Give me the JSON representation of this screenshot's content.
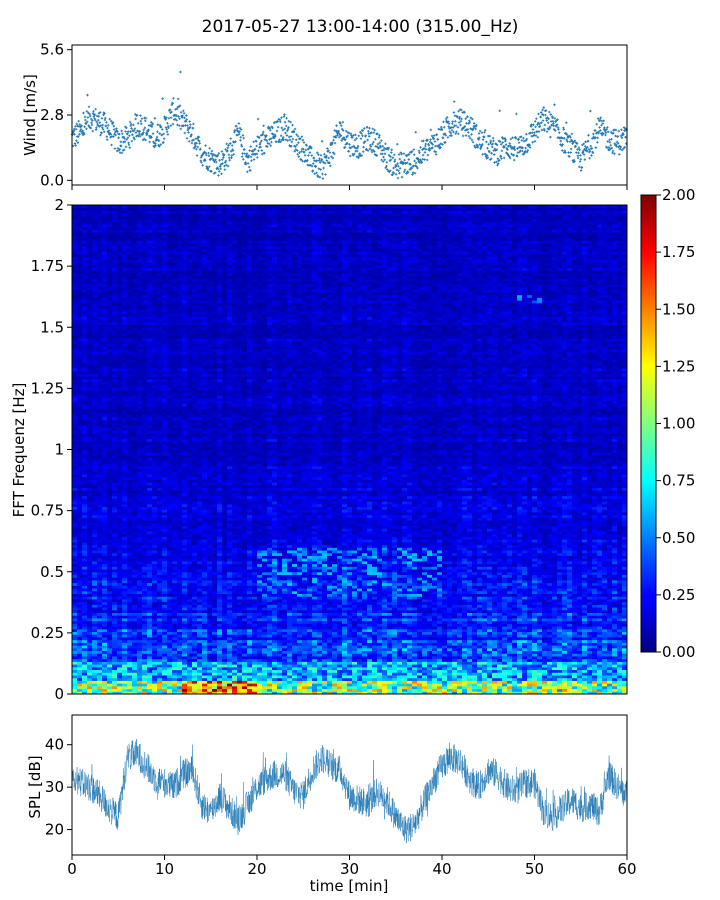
{
  "title": "2017-05-27 13:00-14:00 (315.00_Hz)",
  "colors": {
    "series": "#1f77b4",
    "axes": "#000000"
  },
  "chart_data": [
    {
      "type": "scatter",
      "ylabel": "Wind [m/s]",
      "xlim": [
        0,
        60
      ],
      "ylim": [
        -0.2,
        5.8
      ],
      "yticks": [
        "0.0",
        "2.8",
        "5.6"
      ],
      "marker": "+",
      "trend": [
        [
          0,
          1.8
        ],
        [
          1,
          2.1
        ],
        [
          2,
          2.7
        ],
        [
          3,
          2.5
        ],
        [
          4,
          2.2
        ],
        [
          5,
          1.6
        ],
        [
          6,
          1.8
        ],
        [
          7,
          2.4
        ],
        [
          8,
          2.2
        ],
        [
          9,
          1.8
        ],
        [
          10,
          2.2
        ],
        [
          11,
          3.0
        ],
        [
          12,
          2.5
        ],
        [
          13,
          2.0
        ],
        [
          14,
          1.2
        ],
        [
          15,
          0.9
        ],
        [
          16,
          0.7
        ],
        [
          17,
          1.2
        ],
        [
          18,
          2.0
        ],
        [
          19,
          0.8
        ],
        [
          20,
          1.4
        ],
        [
          21,
          1.7
        ],
        [
          22,
          2.0
        ],
        [
          23,
          2.3
        ],
        [
          24,
          1.8
        ],
        [
          25,
          1.3
        ],
        [
          26,
          0.8
        ],
        [
          27,
          0.5
        ],
        [
          28,
          1.2
        ],
        [
          29,
          2.2
        ],
        [
          30,
          1.6
        ],
        [
          31,
          1.5
        ],
        [
          32,
          1.8
        ],
        [
          33,
          1.6
        ],
        [
          34,
          1.0
        ],
        [
          35,
          0.6
        ],
        [
          36,
          0.7
        ],
        [
          37,
          0.8
        ],
        [
          38,
          1.2
        ],
        [
          39,
          1.5
        ],
        [
          40,
          1.9
        ],
        [
          41,
          2.4
        ],
        [
          42,
          2.5
        ],
        [
          43,
          2.3
        ],
        [
          44,
          1.7
        ],
        [
          45,
          1.4
        ],
        [
          46,
          1.2
        ],
        [
          47,
          1.5
        ],
        [
          48,
          1.3
        ],
        [
          49,
          1.6
        ],
        [
          50,
          2.1
        ],
        [
          51,
          2.6
        ],
        [
          52,
          2.3
        ],
        [
          53,
          1.8
        ],
        [
          54,
          1.3
        ],
        [
          55,
          0.9
        ],
        [
          56,
          1.5
        ],
        [
          57,
          2.2
        ],
        [
          58,
          1.8
        ],
        [
          59,
          1.6
        ],
        [
          60,
          1.9
        ]
      ],
      "series": [
        {
          "name": "",
          "color": "#1f77b4"
        }
      ]
    },
    {
      "type": "heatmap",
      "ylabel": "FFT Frequenz [Hz]",
      "xlim": [
        0,
        60
      ],
      "ylim": [
        0,
        2
      ],
      "yticks": [
        "0",
        "0.25",
        "0.5",
        "0.75",
        "1",
        "1.25",
        "1.5",
        "1.75",
        "2"
      ],
      "colormap": "jet",
      "colorbar": {
        "range": [
          0,
          2
        ],
        "ticks": [
          "0.00",
          "0.25",
          "0.50",
          "0.75",
          "1.00",
          "1.25",
          "1.50",
          "1.75",
          "2.00"
        ]
      },
      "features": [
        {
          "freq": [
            0,
            0.06
          ],
          "time": [
            0,
            60
          ],
          "level": 1.4
        },
        {
          "freq": [
            0.4,
            0.6
          ],
          "time": [
            20,
            40
          ],
          "level": 0.6
        },
        {
          "freq": [
            1.6,
            1.63
          ],
          "time": [
            48,
            51
          ],
          "level": 0.55
        }
      ]
    },
    {
      "type": "line",
      "ylabel": "SPL [dB]",
      "xlabel": "time [min]",
      "xlim": [
        0,
        60
      ],
      "ylim": [
        14,
        47
      ],
      "yticks": [
        "20",
        "30",
        "40"
      ],
      "xticks": [
        "0",
        "10",
        "20",
        "30",
        "40",
        "50",
        "60"
      ],
      "series": [
        {
          "name": "",
          "color": "#1f77b4",
          "x": [
            0,
            1,
            2,
            3,
            4,
            5,
            6,
            7,
            8,
            9,
            10,
            11,
            12,
            13,
            14,
            15,
            16,
            17,
            18,
            19,
            20,
            21,
            22,
            23,
            24,
            25,
            26,
            27,
            28,
            29,
            30,
            31,
            32,
            33,
            34,
            35,
            36,
            37,
            38,
            39,
            40,
            41,
            42,
            43,
            44,
            45,
            46,
            47,
            48,
            49,
            50,
            51,
            52,
            53,
            54,
            55,
            56,
            57,
            58,
            59,
            60
          ],
          "values": [
            33,
            31,
            30,
            28,
            25,
            23,
            37,
            38,
            35,
            32,
            31,
            30,
            33,
            34,
            26,
            24,
            28,
            25,
            22,
            26,
            30,
            32,
            33,
            33,
            29,
            28,
            34,
            37,
            35,
            34,
            28,
            27,
            26,
            29,
            27,
            23,
            20,
            21,
            26,
            31,
            35,
            37,
            36,
            32,
            30,
            34,
            33,
            30,
            29,
            31,
            31,
            24,
            23,
            25,
            27,
            25,
            26,
            24,
            33,
            30,
            28
          ],
          "band": 3.5
        }
      ]
    }
  ]
}
